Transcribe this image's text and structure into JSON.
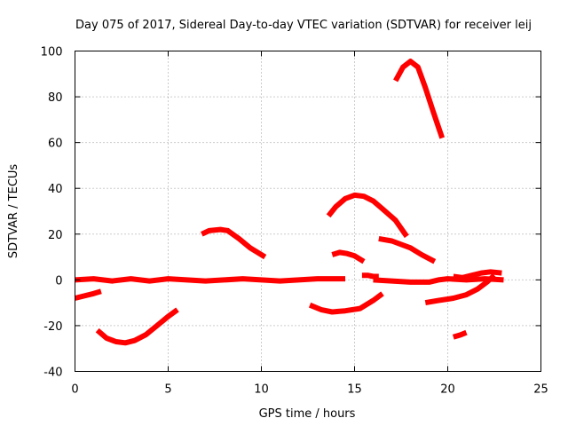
{
  "chart_data": {
    "type": "scatter",
    "title": "Day 075 of 2017, Sidereal Day-to-day VTEC variation (SDTVAR) for receiver leij",
    "xlabel": "GPS time / hours",
    "ylabel": "SDTVAR / TECUs",
    "xlim": [
      0,
      25
    ],
    "ylim": [
      -40,
      100
    ],
    "xticks": [
      0,
      5,
      10,
      15,
      20,
      25
    ],
    "yticks": [
      -40,
      -20,
      0,
      20,
      40,
      60,
      80,
      100
    ],
    "grid": true,
    "legend": "none",
    "color": "#ff0000",
    "series": [
      {
        "x": [
          0,
          0.5,
          1.0,
          1.4
        ],
        "y": [
          -8,
          -7,
          -6,
          -5
        ]
      },
      {
        "x": [
          0,
          1,
          2,
          3,
          4,
          5,
          6,
          7,
          8,
          9,
          10,
          11,
          12,
          13,
          14,
          14.5
        ],
        "y": [
          0,
          0.5,
          -0.5,
          0.5,
          -0.5,
          0.5,
          0,
          -0.5,
          0,
          0.5,
          0,
          -0.5,
          0,
          0.5,
          0.5,
          0.5
        ]
      },
      {
        "x": [
          1.2,
          1.7,
          2.2,
          2.7,
          3.2,
          3.8,
          4.4,
          5.0,
          5.5
        ],
        "y": [
          -22,
          -25.5,
          -27,
          -27.5,
          -26.5,
          -24,
          -20,
          -16,
          -13
        ]
      },
      {
        "x": [
          6.8,
          7.2,
          7.8,
          8.2,
          8.8,
          9.4,
          10.2
        ],
        "y": [
          20,
          21.5,
          22,
          21.5,
          18,
          14,
          10
        ]
      },
      {
        "x": [
          12.6,
          13.2,
          13.8,
          14.5,
          15.3,
          16.0,
          16.5
        ],
        "y": [
          -11,
          -13,
          -14,
          -13.5,
          -12.5,
          -9,
          -6
        ]
      },
      {
        "x": [
          13.8,
          14.2,
          14.6,
          15.0,
          15.5
        ],
        "y": [
          11,
          12,
          11.5,
          10.5,
          8
        ]
      },
      {
        "x": [
          13.6,
          14.0,
          14.5,
          15.0,
          15.5,
          16.0,
          16.5,
          17.2,
          17.8
        ],
        "y": [
          28,
          32,
          35.5,
          37,
          36.5,
          34.5,
          31,
          26,
          19
        ]
      },
      {
        "x": [
          15.4,
          15.7,
          16.0,
          16.3
        ],
        "y": [
          2,
          2,
          1.5,
          1.5
        ]
      },
      {
        "x": [
          16.0,
          17.0,
          18.0,
          19.0,
          19.5,
          20.0,
          21.0,
          22.0,
          23.0
        ],
        "y": [
          0,
          -0.5,
          -1,
          -1,
          0,
          0.5,
          0,
          0.5,
          0
        ]
      },
      {
        "x": [
          16.3,
          17.0,
          18.0,
          18.6,
          19.3
        ],
        "y": [
          18,
          17,
          14,
          11,
          8
        ]
      },
      {
        "x": [
          17.2,
          17.6,
          18.0,
          18.4,
          18.8,
          19.2,
          19.7
        ],
        "y": [
          87,
          93,
          95.5,
          93,
          84,
          74,
          62
        ]
      },
      {
        "x": [
          18.8,
          19.5,
          20.3,
          21.0,
          21.6,
          22.1,
          22.5
        ],
        "y": [
          -10,
          -9,
          -8,
          -6.5,
          -4,
          -1,
          2
        ]
      },
      {
        "x": [
          20.3,
          20.8,
          21.3,
          21.8,
          22.3,
          22.9
        ],
        "y": [
          1.5,
          1,
          2,
          3,
          3.5,
          3
        ]
      },
      {
        "x": [
          20.3,
          20.7,
          21.0
        ],
        "y": [
          -25,
          -24,
          -23
        ]
      }
    ]
  }
}
